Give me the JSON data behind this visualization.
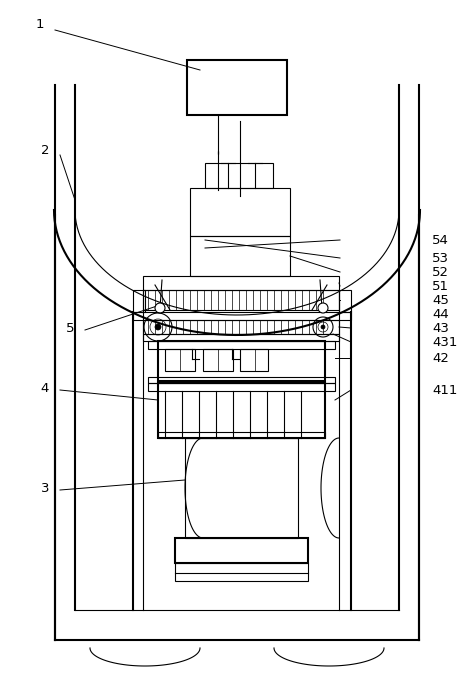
{
  "fig_width": 4.74,
  "fig_height": 6.93,
  "dpi": 100,
  "bg_color": "#ffffff",
  "lc": "#000000",
  "lw": 0.8,
  "lw_thick": 1.5
}
